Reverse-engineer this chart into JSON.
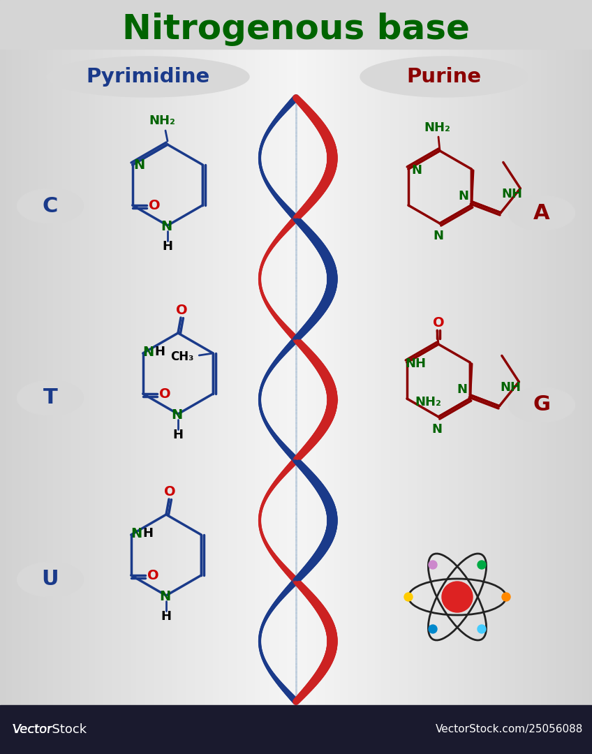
{
  "title": "Nitrogenous base",
  "title_color": "#006400",
  "title_fontsize": 36,
  "pyrimidine_label": "Pyrimidine",
  "pyrimidine_color": "#1a3a8a",
  "purine_label": "Purine",
  "purine_color": "#8b0000",
  "footer_color": "#1a1a2e",
  "bond_color_pyr": "#1a3a8a",
  "bond_color_pur": "#8b0000",
  "N_color": "#006400",
  "O_color": "#cc0000",
  "H_color": "#000000",
  "C_color": "#000000",
  "label_C_color": "#1a3a8a",
  "label_A_color": "#8b0000",
  "label_T_color": "#1a3a8a",
  "label_G_color": "#8b0000",
  "label_U_color": "#1a3a8a",
  "helix_red": "#cc2222",
  "helix_blue": "#1a3a8a",
  "helix_light": "#a0b8d0",
  "bg_left": "#c8c8c8",
  "bg_center": "#f0f0f0",
  "bg_right": "#c8c8c8"
}
